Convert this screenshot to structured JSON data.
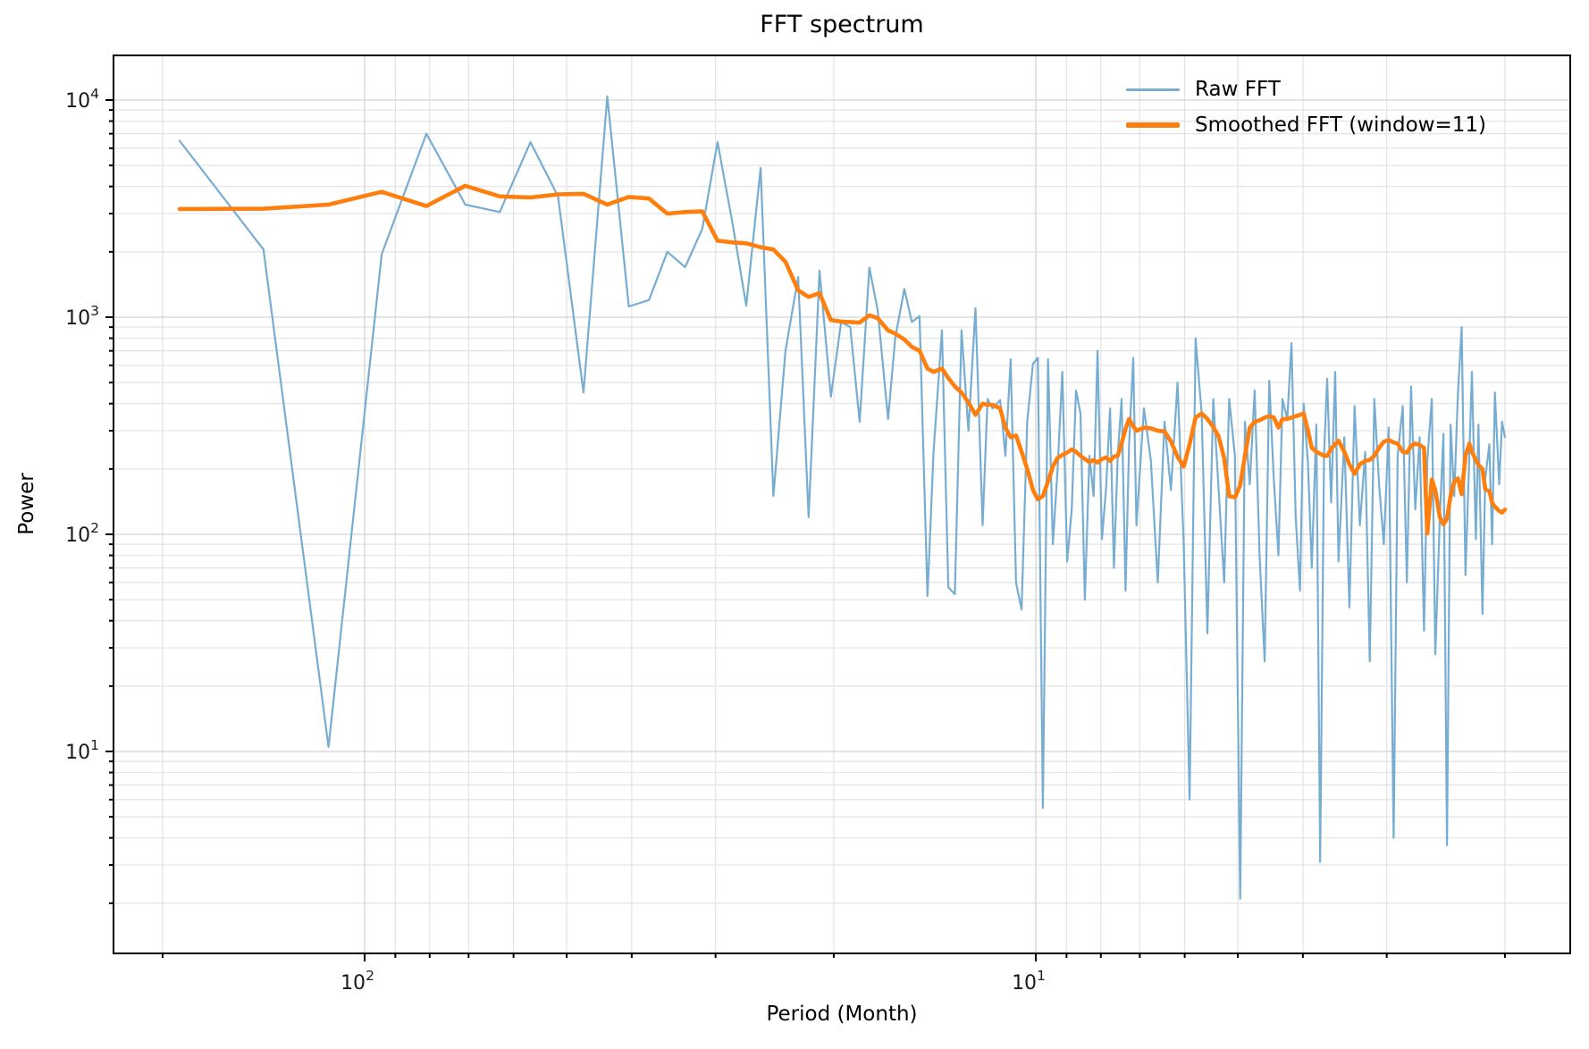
{
  "figure": {
    "title": "FFT spectrum",
    "xlabel": "Period (Month)",
    "ylabel": "Power",
    "legend": [
      {
        "label": "Raw FFT",
        "color": "#78add2",
        "line_width": 3
      },
      {
        "label": "Smoothed FFT (window=11)",
        "color": "#ff7f0e",
        "line_width": 6
      }
    ]
  },
  "chart_data": {
    "type": "line",
    "title": "FFT spectrum",
    "xlabel": "Period (Month)",
    "ylabel": "Power",
    "x_scale": "log",
    "x_inverted": true,
    "x_lim": [
      236,
      1.59
    ],
    "y_scale": "log",
    "y_lim": [
      1.17,
      16000
    ],
    "grid": true,
    "legend_position": "upper right",
    "x_major_ticks": [
      {
        "value": 100,
        "base": "10",
        "exponent": "2"
      },
      {
        "value": 10,
        "base": "10",
        "exponent": "1"
      }
    ],
    "y_major_ticks": [
      {
        "value": 10000,
        "base": "10",
        "exponent": "4"
      },
      {
        "value": 1000,
        "base": "10",
        "exponent": "3"
      },
      {
        "value": 100,
        "base": "10",
        "exponent": "2"
      },
      {
        "value": 10,
        "base": "10",
        "exponent": "1"
      }
    ],
    "x": [
      188.7,
      141.5,
      113.2,
      94.3,
      80.9,
      70.8,
      62.9,
      56.6,
      51.5,
      47.2,
      43.5,
      40.4,
      37.7,
      35.4,
      33.3,
      31.4,
      29.8,
      28.3,
      27.0,
      25.7,
      24.6,
      23.6,
      22.6,
      21.8,
      21.0,
      20.2,
      19.5,
      18.9,
      18.3,
      17.7,
      17.2,
      16.6,
      16.2,
      15.7,
      15.3,
      14.9,
      14.5,
      14.2,
      13.8,
      13.5,
      13.2,
      12.9,
      12.6,
      12.3,
      12.0,
      11.8,
      11.6,
      11.3,
      11.1,
      10.9,
      10.7,
      10.5,
      10.3,
      10.1,
      9.93,
      9.76,
      9.59,
      9.43,
      9.28,
      9.13,
      8.98,
      8.84,
      8.71,
      8.58,
      8.45,
      8.32,
      8.2,
      8.09,
      7.97,
      7.86,
      7.75,
      7.65,
      7.55,
      7.45,
      7.35,
      7.26,
      7.16,
      7.08,
      6.9,
      6.74,
      6.58,
      6.43,
      6.29,
      6.15,
      6.02,
      5.9,
      5.78,
      5.66,
      5.55,
      5.44,
      5.34,
      5.24,
      5.15,
      5.05,
      4.96,
      4.88,
      4.8,
      4.72,
      4.64,
      4.56,
      4.49,
      4.42,
      4.35,
      4.29,
      4.22,
      4.16,
      4.1,
      4.04,
      3.99,
      3.93,
      3.88,
      3.82,
      3.77,
      3.72,
      3.68,
      3.63,
      3.58,
      3.54,
      3.47,
      3.41,
      3.35,
      3.29,
      3.23,
      3.18,
      3.13,
      3.08,
      3.03,
      2.98,
      2.93,
      2.89,
      2.84,
      2.8,
      2.76,
      2.72,
      2.68,
      2.64,
      2.61,
      2.57,
      2.54,
      2.5,
      2.47,
      2.44,
      2.41,
      2.38,
      2.35,
      2.32,
      2.29,
      2.26,
      2.24,
      2.21,
      2.19,
      2.16,
      2.14,
      2.11,
      2.09,
      2.07,
      2.04,
      2.02,
      2.0
    ],
    "series": [
      {
        "name": "Raw FFT",
        "color": "#78add2",
        "line_width": 2.2,
        "y": [
          6500,
          2050,
          10.5,
          1950,
          7000,
          3300,
          3050,
          6400,
          3600,
          450,
          10400,
          1120,
          1200,
          2000,
          1700,
          2550,
          6400,
          2700,
          1130,
          4870,
          150,
          700,
          1530,
          120,
          1640,
          430,
          950,
          900,
          330,
          1690,
          1075,
          340,
          800,
          1350,
          950,
          1010,
          52,
          240,
          870,
          57,
          53,
          870,
          300,
          1100,
          110,
          420,
          380,
          415,
          230,
          640,
          60,
          45,
          330,
          610,
          650,
          5.5,
          640,
          90,
          200,
          560,
          75,
          130,
          460,
          360,
          50,
          230,
          150,
          700,
          95,
          160,
          380,
          70,
          230,
          420,
          55,
          260,
          650,
          110,
          380,
          220,
          60,
          330,
          160,
          500,
          90,
          6,
          800,
          360,
          35,
          420,
          160,
          60,
          420,
          230,
          2.1,
          330,
          170,
          460,
          80,
          26,
          510,
          180,
          80,
          420,
          340,
          760,
          120,
          55,
          400,
          210,
          70,
          320,
          3.1,
          230,
          520,
          140,
          560,
          75,
          280,
          46,
          390,
          110,
          240,
          26,
          420,
          170,
          90,
          310,
          4,
          230,
          390,
          60,
          480,
          130,
          280,
          36,
          220,
          420,
          28,
          120,
          290,
          3.7,
          320,
          150,
          440,
          900,
          65,
          230,
          560,
          95,
          320,
          43,
          180,
          260,
          90,
          450,
          170,
          330,
          280
        ]
      },
      {
        "name": "Smoothed FFT (window=11)",
        "color": "#ff7f0e",
        "line_width": 4.6,
        "y": [
          3150,
          3160,
          3300,
          3780,
          3250,
          4030,
          3600,
          3560,
          3680,
          3700,
          3300,
          3580,
          3520,
          3000,
          3050,
          3070,
          2250,
          2210,
          2190,
          2100,
          2050,
          1800,
          1330,
          1240,
          1290,
          970,
          955,
          950,
          945,
          1020,
          990,
          870,
          840,
          790,
          730,
          700,
          580,
          560,
          580,
          525,
          480,
          450,
          405,
          355,
          400,
          395,
          395,
          380,
          310,
          280,
          285,
          240,
          200,
          160,
          145,
          150,
          175,
          205,
          225,
          232,
          238,
          246,
          240,
          230,
          222,
          215,
          220,
          214,
          222,
          226,
          218,
          228,
          230,
          262,
          306,
          340,
          315,
          300,
          310,
          308,
          300,
          298,
          268,
          228,
          205,
          260,
          345,
          360,
          340,
          312,
          282,
          224,
          150,
          148,
          168,
          230,
          310,
          330,
          335,
          345,
          350,
          345,
          310,
          340,
          340,
          345,
          350,
          355,
          360,
          300,
          250,
          240,
          235,
          230,
          230,
          248,
          260,
          270,
          240,
          210,
          190,
          210,
          218,
          220,
          230,
          250,
          267,
          272,
          265,
          262,
          240,
          238,
          255,
          262,
          258,
          250,
          101,
          179,
          160,
          120,
          111,
          118,
          150,
          175,
          181,
          153,
          230,
          262,
          240,
          220,
          209,
          200,
          161,
          158,
          140,
          134,
          128,
          126,
          130
        ]
      }
    ]
  }
}
